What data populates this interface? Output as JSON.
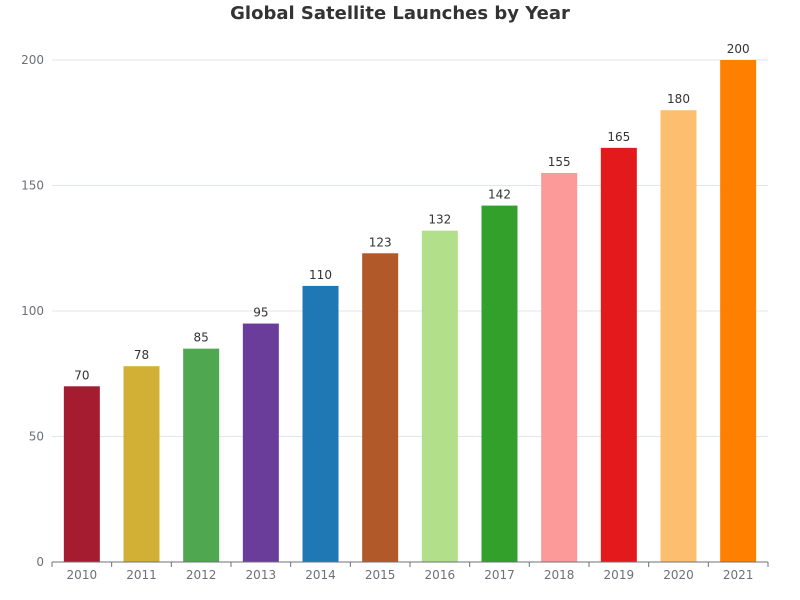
{
  "chart_data": {
    "type": "bar",
    "title": "Global Satellite Launches by Year",
    "xlabel": "",
    "ylabel": "",
    "categories": [
      "2010",
      "2011",
      "2012",
      "2013",
      "2014",
      "2015",
      "2016",
      "2017",
      "2018",
      "2019",
      "2020",
      "2021"
    ],
    "values": [
      70,
      78,
      85,
      95,
      110,
      123,
      132,
      142,
      155,
      165,
      180,
      200
    ],
    "colors": [
      "#a51c30",
      "#d1b035",
      "#4fa74f",
      "#6a3d9a",
      "#1f78b4",
      "#b15928",
      "#b2df8a",
      "#33a02c",
      "#fb9a99",
      "#e31a1c",
      "#fdbf6f",
      "#ff7f00"
    ],
    "ylim": [
      0,
      200
    ],
    "yticks": [
      0,
      50,
      100,
      150,
      200
    ],
    "grid": true,
    "data_labels": true
  }
}
